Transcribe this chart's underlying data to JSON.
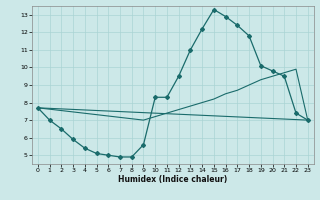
{
  "title": "",
  "xlabel": "Humidex (Indice chaleur)",
  "bg_color": "#cce8e8",
  "line_color": "#1a6b6b",
  "grid_color": "#aad4d4",
  "xlim": [
    -0.5,
    23.5
  ],
  "ylim": [
    4.5,
    13.5
  ],
  "yticks": [
    5,
    6,
    7,
    8,
    9,
    10,
    11,
    12,
    13
  ],
  "xticks": [
    0,
    1,
    2,
    3,
    4,
    5,
    6,
    7,
    8,
    9,
    10,
    11,
    12,
    13,
    14,
    15,
    16,
    17,
    18,
    19,
    20,
    21,
    22,
    23
  ],
  "line1_x": [
    0,
    1,
    2,
    3,
    4,
    5,
    6,
    7,
    8,
    9,
    10,
    11,
    12,
    13,
    14,
    15,
    16,
    17,
    18,
    19,
    20,
    21,
    22,
    23
  ],
  "line1_y": [
    7.7,
    7.0,
    6.5,
    5.9,
    5.4,
    5.1,
    5.0,
    4.9,
    4.9,
    5.6,
    8.3,
    8.3,
    9.5,
    11.0,
    12.2,
    13.3,
    12.9,
    12.4,
    11.8,
    10.1,
    9.8,
    9.5,
    7.4,
    7.0
  ],
  "line2_x": [
    0,
    23
  ],
  "line2_y": [
    7.7,
    7.0
  ],
  "line3_x": [
    0,
    9,
    10,
    11,
    12,
    13,
    14,
    15,
    16,
    17,
    18,
    19,
    20,
    21,
    22,
    23
  ],
  "line3_y": [
    7.7,
    7.0,
    7.2,
    7.4,
    7.6,
    7.8,
    8.0,
    8.2,
    8.5,
    8.7,
    9.0,
    9.3,
    9.5,
    9.7,
    9.9,
    7.0
  ]
}
